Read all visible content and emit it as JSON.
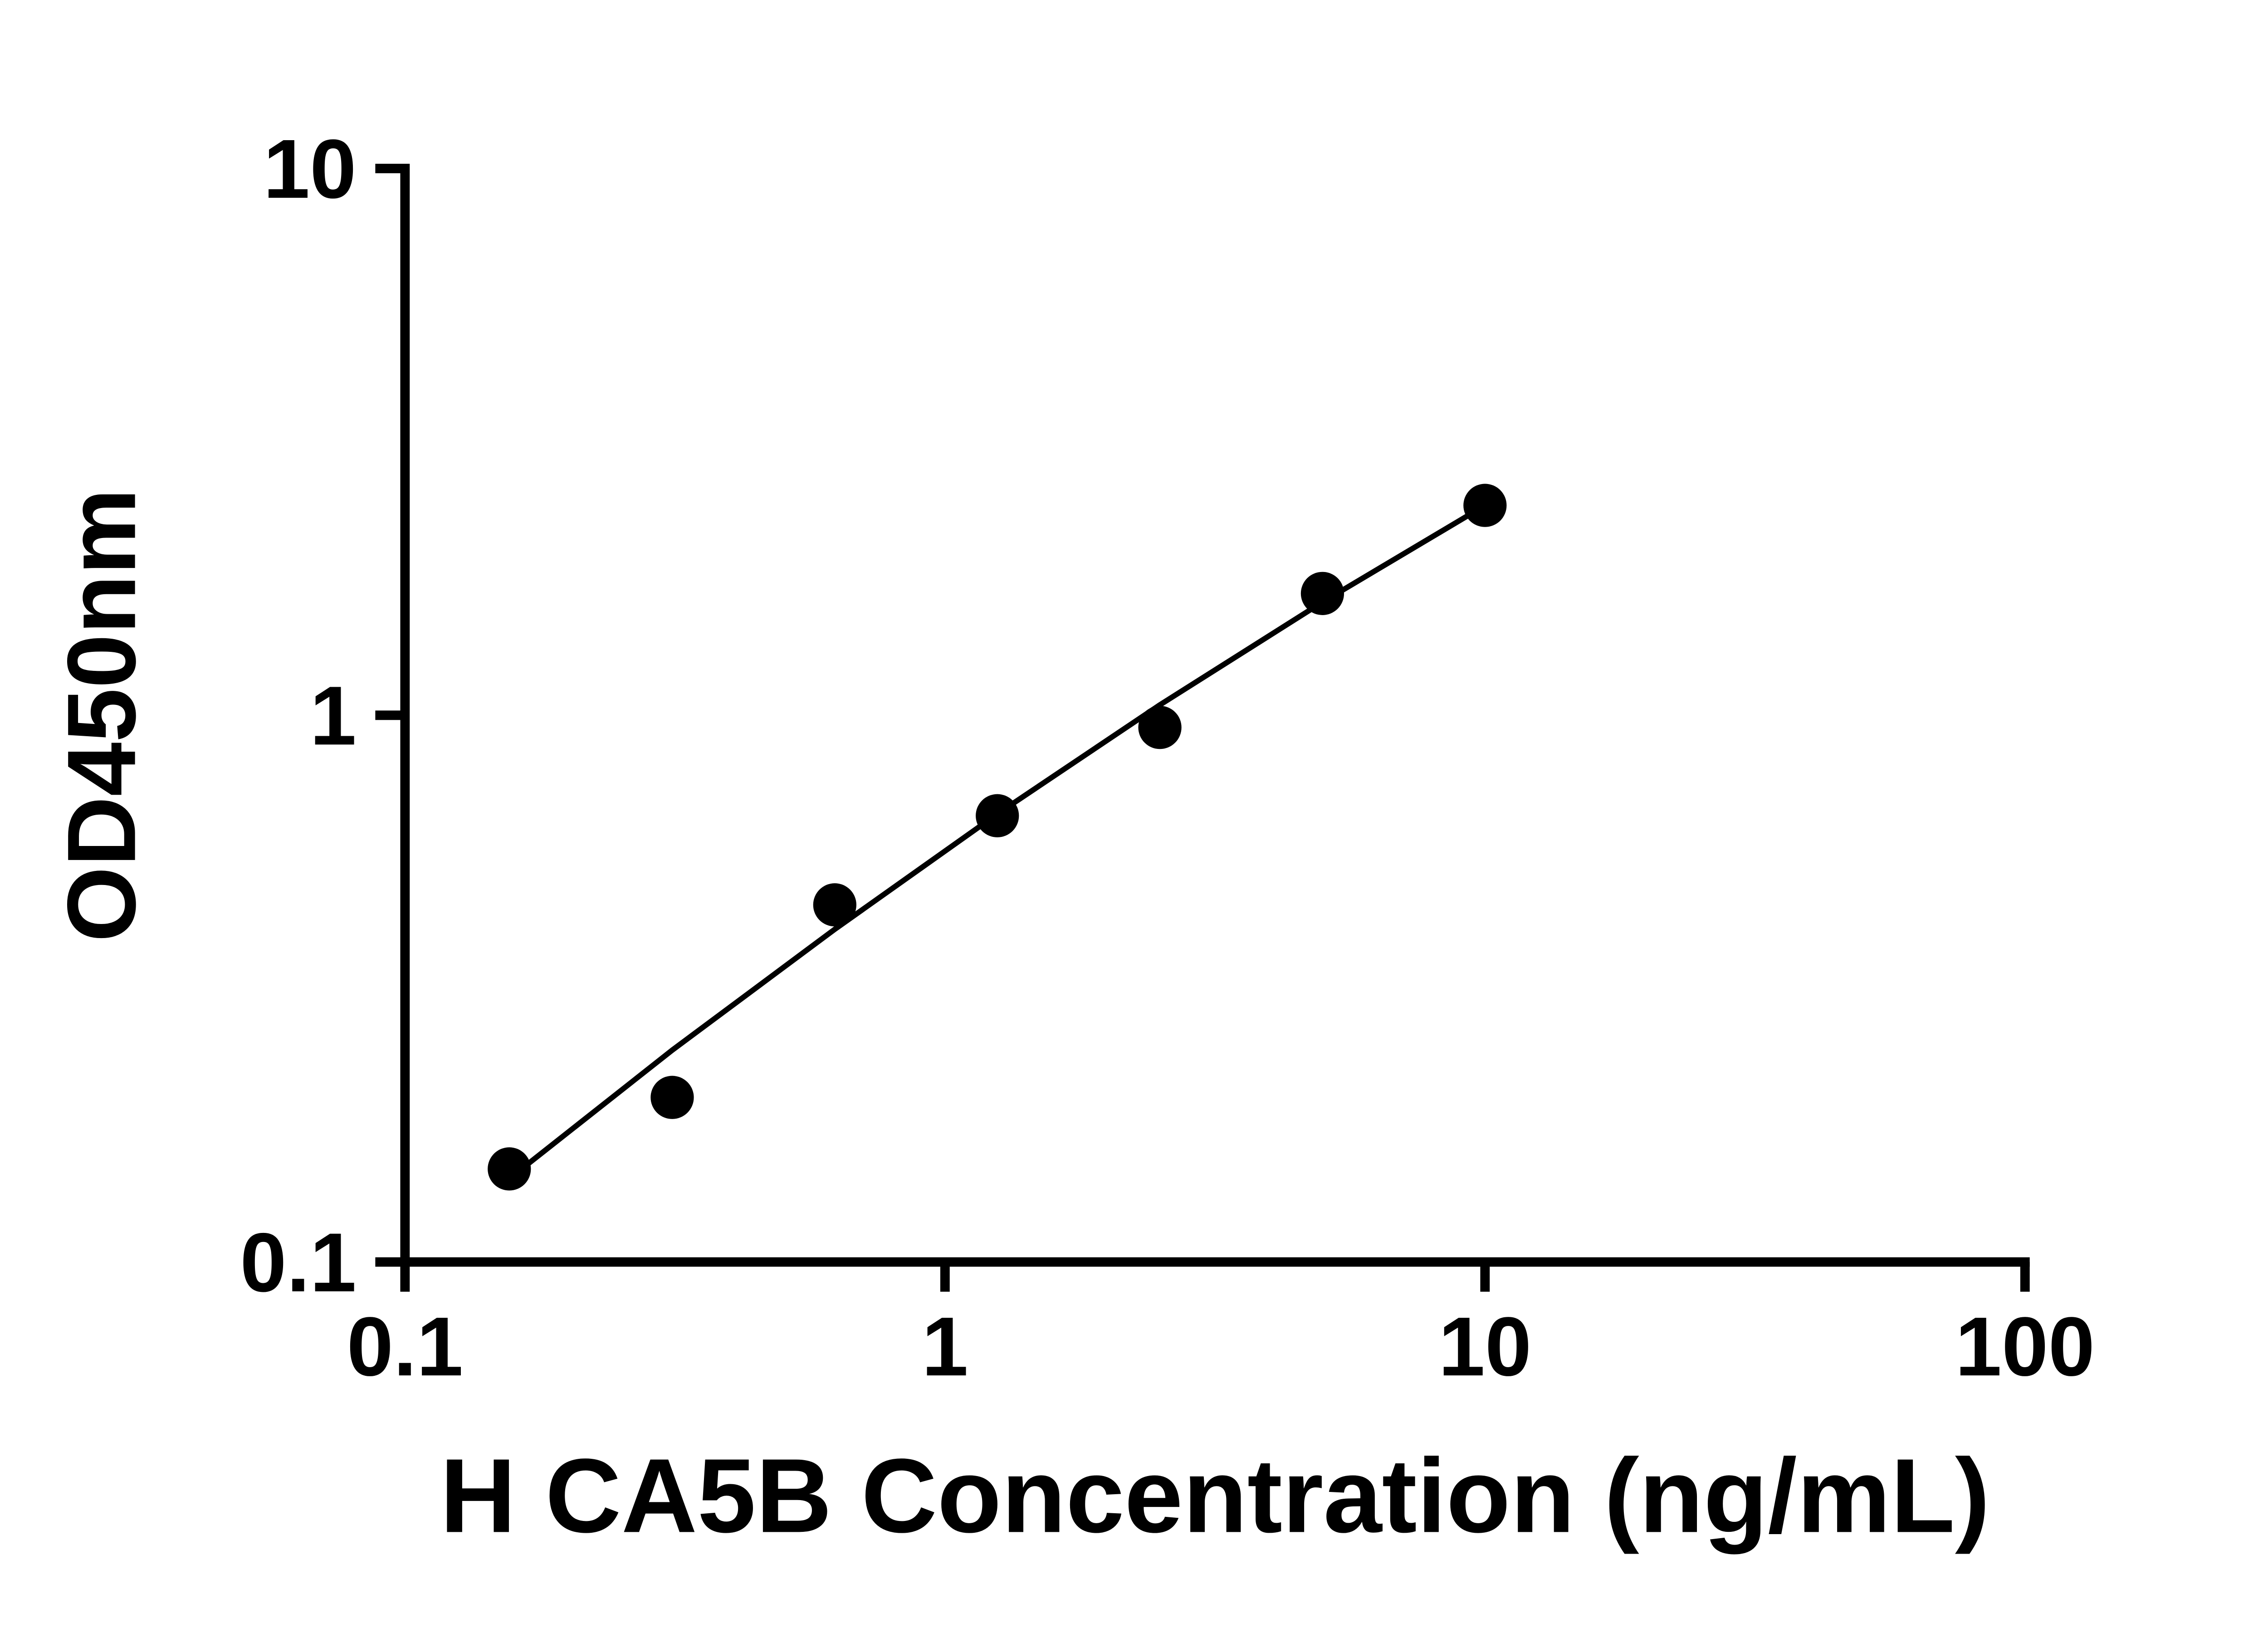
{
  "chart_data": {
    "type": "scatter",
    "title": "",
    "xlabel": "H CA5B Concentration (ng/mL)",
    "ylabel": "OD450nm",
    "x_scale": "log10",
    "y_scale": "log10",
    "xlim": [
      0.1,
      100
    ],
    "ylim": [
      0.1,
      10
    ],
    "grid": false,
    "legend": "none",
    "x_ticks": [
      {
        "value": 0.1,
        "label": "0.1"
      },
      {
        "value": 1,
        "label": "1"
      },
      {
        "value": 10,
        "label": "10"
      },
      {
        "value": 100,
        "label": "100"
      }
    ],
    "y_ticks": [
      {
        "value": 0.1,
        "label": "0.1"
      },
      {
        "value": 1,
        "label": "1"
      },
      {
        "value": 10,
        "label": "10"
      }
    ],
    "points": [
      {
        "x": 0.156,
        "y": 0.148
      },
      {
        "x": 0.3125,
        "y": 0.2
      },
      {
        "x": 0.625,
        "y": 0.45
      },
      {
        "x": 1.25,
        "y": 0.655
      },
      {
        "x": 2.5,
        "y": 0.95
      },
      {
        "x": 5,
        "y": 1.67
      },
      {
        "x": 10,
        "y": 2.42
      }
    ],
    "trend_line": {
      "type": "fitted-curve",
      "points": [
        {
          "x": 0.156,
          "y": 0.142
        },
        {
          "x": 0.3125,
          "y": 0.244
        },
        {
          "x": 0.625,
          "y": 0.406
        },
        {
          "x": 1.25,
          "y": 0.66
        },
        {
          "x": 2.5,
          "y": 1.045
        },
        {
          "x": 5,
          "y": 1.61
        },
        {
          "x": 10,
          "y": 2.42
        }
      ]
    },
    "marker": {
      "shape": "circle",
      "color": "#000000",
      "radius": 16
    },
    "line_color": "#000000",
    "axis_color": "#000000",
    "background": "#ffffff"
  }
}
